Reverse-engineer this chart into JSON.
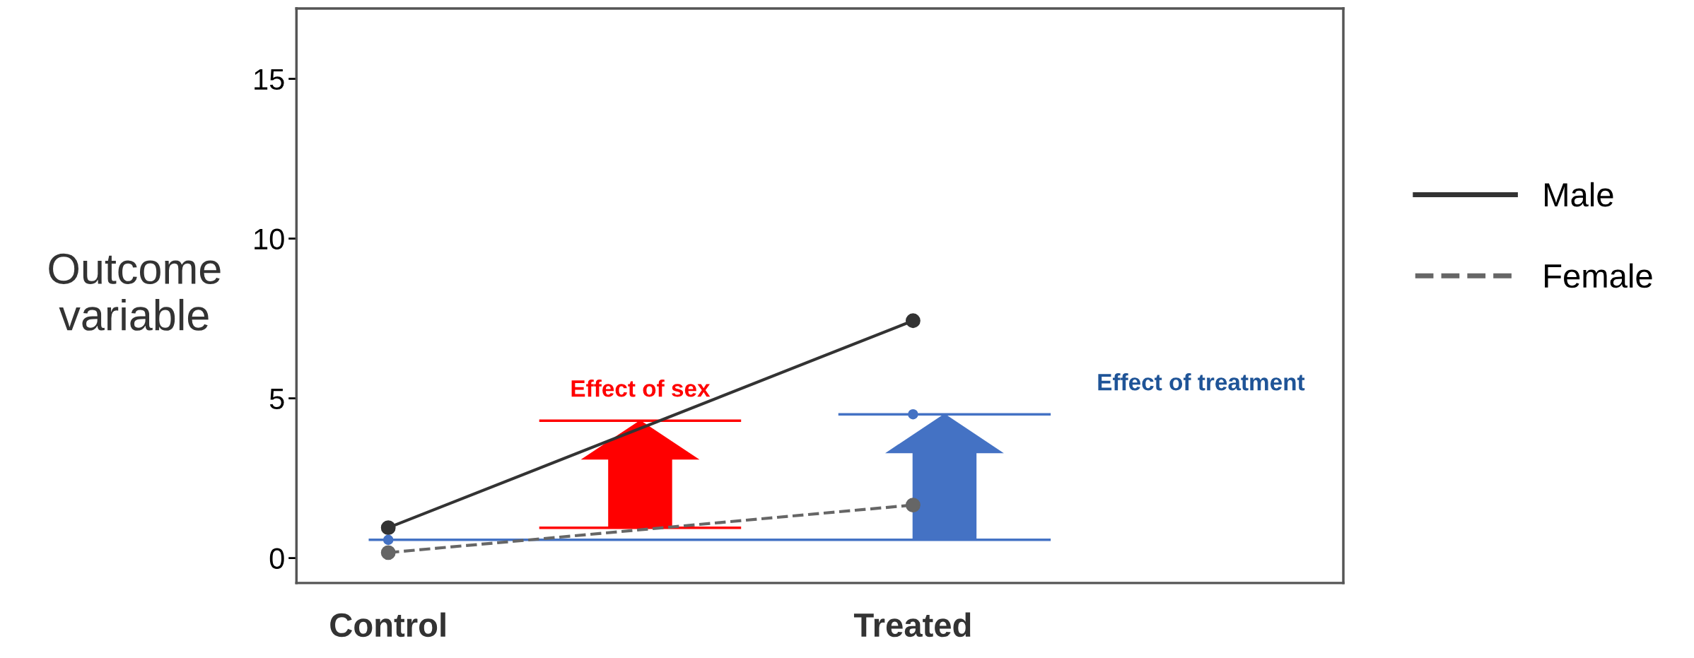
{
  "chart_data": {
    "type": "line",
    "ylabel": "Outcome\nvariable",
    "categories": [
      "Control",
      "Treated"
    ],
    "ylim": [
      -0.78,
      17.2
    ],
    "yticks": [
      0,
      5,
      10,
      15
    ],
    "marker": "circle",
    "grid": false,
    "legend": "right",
    "series": [
      {
        "name": "Male",
        "color": "#333333",
        "values": [
          0.95,
          7.43
        ],
        "line_style": "solid"
      },
      {
        "name": "Female",
        "color": "#666666",
        "values": [
          0.17,
          1.66
        ],
        "line_style": "dashed"
      },
      {
        "type": "scatter",
        "color": "#4472c4",
        "values": [
          0.57,
          4.5
        ]
      }
    ],
    "ref_lines": [
      {
        "axis": "y",
        "value": 4.3,
        "label": "Effect of sex",
        "color": "#ff0000"
      },
      {
        "axis": "y",
        "value": 0.95,
        "color": "#ff0000"
      },
      {
        "axis": "y",
        "value": 0.57,
        "color": "#4472c4"
      },
      {
        "axis": "y",
        "value": 4.5,
        "label": "Effect of treatment",
        "color": "#4472c4"
      }
    ]
  }
}
